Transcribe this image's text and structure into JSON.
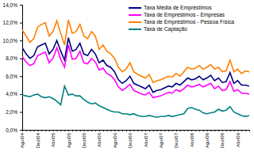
{
  "chart_data": {
    "type": "line",
    "categories": [
      "Ago/04",
      null,
      null,
      null,
      "Dez/04",
      null,
      null,
      null,
      "Abr/05",
      null,
      null,
      null,
      "Ago/05",
      null,
      null,
      null,
      "Dez/05",
      null,
      null,
      null,
      "Abr/06",
      null,
      null,
      null,
      "Ago/06",
      null,
      null,
      null,
      "Dez/06",
      null,
      null,
      null,
      "Abr/07",
      null,
      null,
      null,
      "Ago/07",
      null,
      null,
      null,
      "Dez/07",
      null,
      null,
      null,
      "Abr/08",
      null,
      null,
      null,
      "Ago/08",
      null,
      null,
      null,
      "Dez/08",
      null,
      null,
      null,
      "Abr/09",
      null,
      null,
      null
    ],
    "series": [
      {
        "name": "Taxa Média de Empréstimos",
        "color": "#000080",
        "values": [
          9.2,
          8.5,
          8.0,
          8.3,
          9.3,
          9.5,
          9.7,
          8.5,
          9.0,
          10.0,
          8.8,
          7.8,
          10.3,
          8.8,
          9.0,
          9.7,
          8.5,
          8.3,
          9.0,
          8.5,
          7.5,
          7.8,
          7.2,
          7.0,
          6.5,
          5.6,
          5.2,
          5.5,
          6.0,
          5.2,
          5.0,
          4.8,
          4.6,
          5.0,
          4.2,
          4.4,
          4.5,
          4.7,
          4.9,
          4.8,
          5.2,
          5.0,
          5.4,
          5.8,
          5.6,
          5.7,
          6.0,
          5.6,
          5.8,
          6.1,
          5.5,
          5.8,
          5.3,
          5.4,
          6.4,
          5.2,
          5.5,
          5.0,
          5.0,
          4.9
        ]
      },
      {
        "name": "Taxa de Empréstimos - Empresas",
        "color": "#ff00ff",
        "values": [
          8.2,
          7.6,
          7.2,
          7.4,
          8.3,
          8.5,
          8.7,
          7.5,
          8.0,
          9.2,
          7.9,
          7.0,
          9.5,
          7.9,
          8.0,
          8.8,
          7.5,
          7.4,
          8.0,
          7.6,
          6.7,
          6.9,
          6.3,
          6.1,
          5.6,
          4.8,
          4.4,
          4.7,
          5.1,
          4.4,
          4.2,
          4.0,
          3.9,
          4.2,
          3.6,
          3.7,
          3.8,
          4.0,
          4.2,
          4.1,
          4.5,
          4.3,
          4.6,
          5.0,
          4.8,
          4.9,
          5.1,
          4.8,
          5.0,
          5.2,
          4.6,
          4.9,
          4.4,
          4.5,
          5.4,
          4.3,
          4.5,
          4.1,
          4.1,
          4.0
        ]
      },
      {
        "name": "Taxa de Empréstimos - Pessoa Física",
        "color": "#ff8000",
        "values": [
          11.2,
          10.5,
          9.8,
          10.2,
          11.5,
          11.8,
          12.0,
          10.5,
          11.0,
          12.2,
          10.8,
          9.5,
          12.3,
          10.8,
          11.0,
          11.8,
          10.5,
          10.2,
          11.0,
          10.5,
          9.0,
          9.5,
          8.8,
          8.5,
          8.0,
          7.0,
          6.5,
          6.8,
          7.5,
          6.5,
          6.2,
          6.0,
          5.8,
          6.2,
          5.3,
          5.5,
          5.6,
          5.8,
          6.0,
          5.9,
          6.3,
          6.0,
          6.5,
          7.0,
          6.8,
          6.9,
          7.2,
          6.8,
          7.0,
          7.3,
          6.8,
          7.0,
          6.5,
          6.6,
          7.8,
          6.5,
          6.8,
          6.3,
          6.6,
          6.5
        ]
      },
      {
        "name": "Taxa de Captação",
        "color": "#008080",
        "values": [
          3.9,
          3.8,
          3.7,
          3.9,
          4.0,
          3.7,
          3.6,
          3.7,
          3.5,
          3.2,
          2.8,
          4.9,
          3.9,
          4.0,
          3.8,
          3.8,
          3.4,
          3.1,
          2.9,
          3.0,
          2.7,
          2.5,
          2.3,
          2.1,
          2.0,
          2.0,
          1.8,
          1.8,
          1.7,
          1.8,
          1.6,
          1.5,
          1.5,
          1.6,
          1.5,
          1.4,
          1.5,
          1.5,
          1.6,
          1.5,
          1.6,
          1.7,
          1.8,
          2.4,
          2.5,
          2.3,
          2.2,
          1.9,
          1.8,
          1.9,
          2.0,
          2.3,
          2.1,
          2.2,
          2.6,
          2.0,
          1.8,
          1.6,
          1.5,
          1.6
        ]
      }
    ],
    "ylim": [
      0,
      14
    ],
    "yticks": [
      {
        "value": 0,
        "label": "0,0%"
      },
      {
        "value": 2,
        "label": "2,0%"
      },
      {
        "value": 4,
        "label": "4,0%"
      },
      {
        "value": 6,
        "label": "6,0%"
      },
      {
        "value": 8,
        "label": "8,0%"
      },
      {
        "value": 10,
        "label": "10,0%"
      },
      {
        "value": 12,
        "label": "12,0%"
      },
      {
        "value": 14,
        "label": "14,0%"
      }
    ],
    "grid": false,
    "legend": "top-right"
  }
}
